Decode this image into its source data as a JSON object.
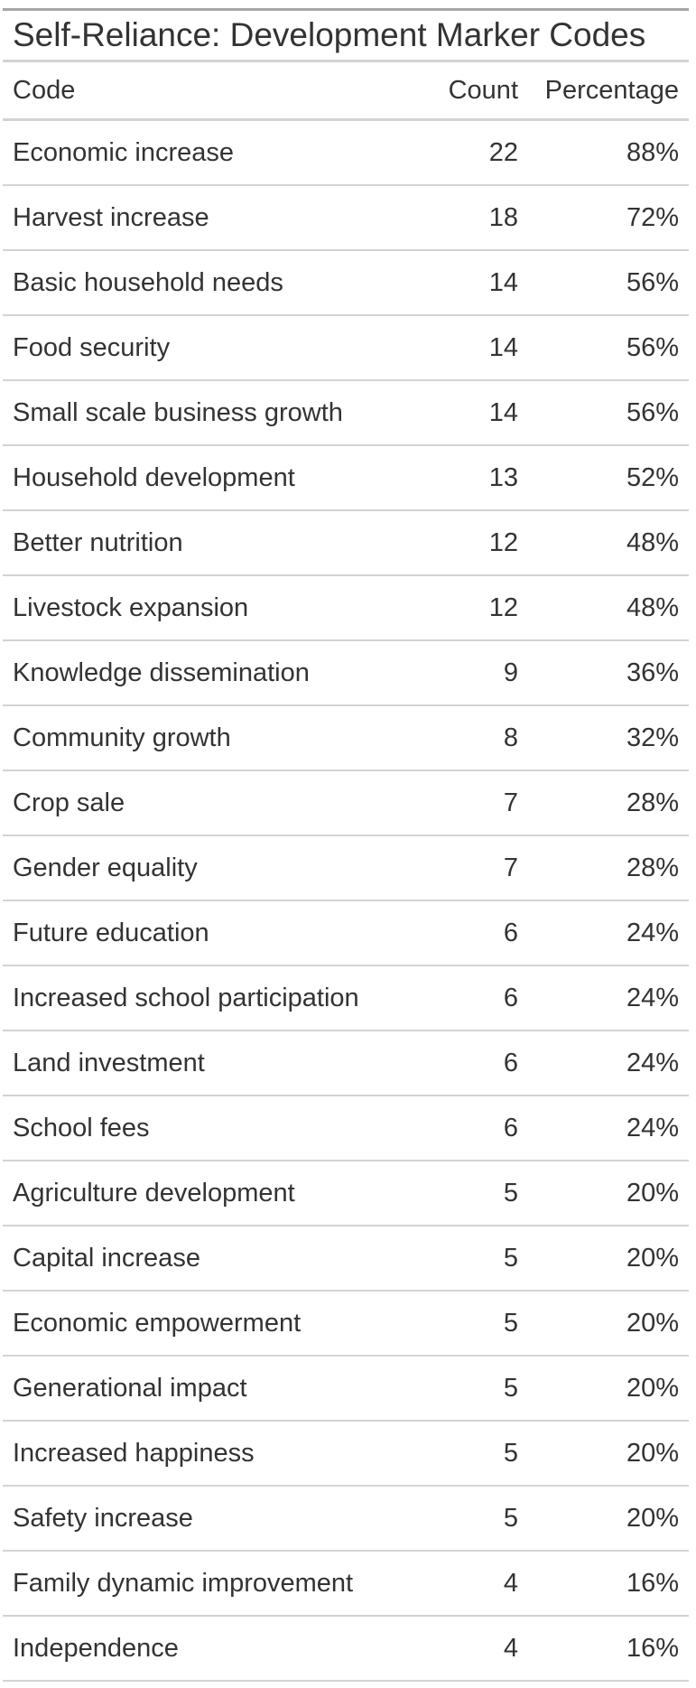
{
  "title": "Self-Reliance: Development Marker Codes",
  "columns": {
    "code": "Code",
    "count": "Count",
    "percentage": "Percentage"
  },
  "rows": [
    {
      "code": "Economic increase",
      "count": "22",
      "percentage": "88%"
    },
    {
      "code": "Harvest increase",
      "count": "18",
      "percentage": "72%"
    },
    {
      "code": "Basic household needs",
      "count": "14",
      "percentage": "56%"
    },
    {
      "code": "Food security",
      "count": "14",
      "percentage": "56%"
    },
    {
      "code": "Small scale business growth",
      "count": "14",
      "percentage": "56%"
    },
    {
      "code": "Household development",
      "count": "13",
      "percentage": "52%"
    },
    {
      "code": "Better nutrition",
      "count": "12",
      "percentage": "48%"
    },
    {
      "code": "Livestock expansion",
      "count": "12",
      "percentage": "48%"
    },
    {
      "code": "Knowledge dissemination",
      "count": "9",
      "percentage": "36%"
    },
    {
      "code": "Community growth",
      "count": "8",
      "percentage": "32%"
    },
    {
      "code": "Crop sale",
      "count": "7",
      "percentage": "28%"
    },
    {
      "code": "Gender equality",
      "count": "7",
      "percentage": "28%"
    },
    {
      "code": "Future education",
      "count": "6",
      "percentage": "24%"
    },
    {
      "code": "Increased school participation",
      "count": "6",
      "percentage": "24%"
    },
    {
      "code": "Land investment",
      "count": "6",
      "percentage": "24%"
    },
    {
      "code": "School fees",
      "count": "6",
      "percentage": "24%"
    },
    {
      "code": "Agriculture development",
      "count": "5",
      "percentage": "20%"
    },
    {
      "code": "Capital increase",
      "count": "5",
      "percentage": "20%"
    },
    {
      "code": "Economic empowerment",
      "count": "5",
      "percentage": "20%"
    },
    {
      "code": "Generational impact",
      "count": "5",
      "percentage": "20%"
    },
    {
      "code": "Increased happiness",
      "count": "5",
      "percentage": "20%"
    },
    {
      "code": "Safety increase",
      "count": "5",
      "percentage": "20%"
    },
    {
      "code": "Family dynamic improvement",
      "count": "4",
      "percentage": "16%"
    },
    {
      "code": "Independence",
      "count": "4",
      "percentage": "16%"
    }
  ]
}
